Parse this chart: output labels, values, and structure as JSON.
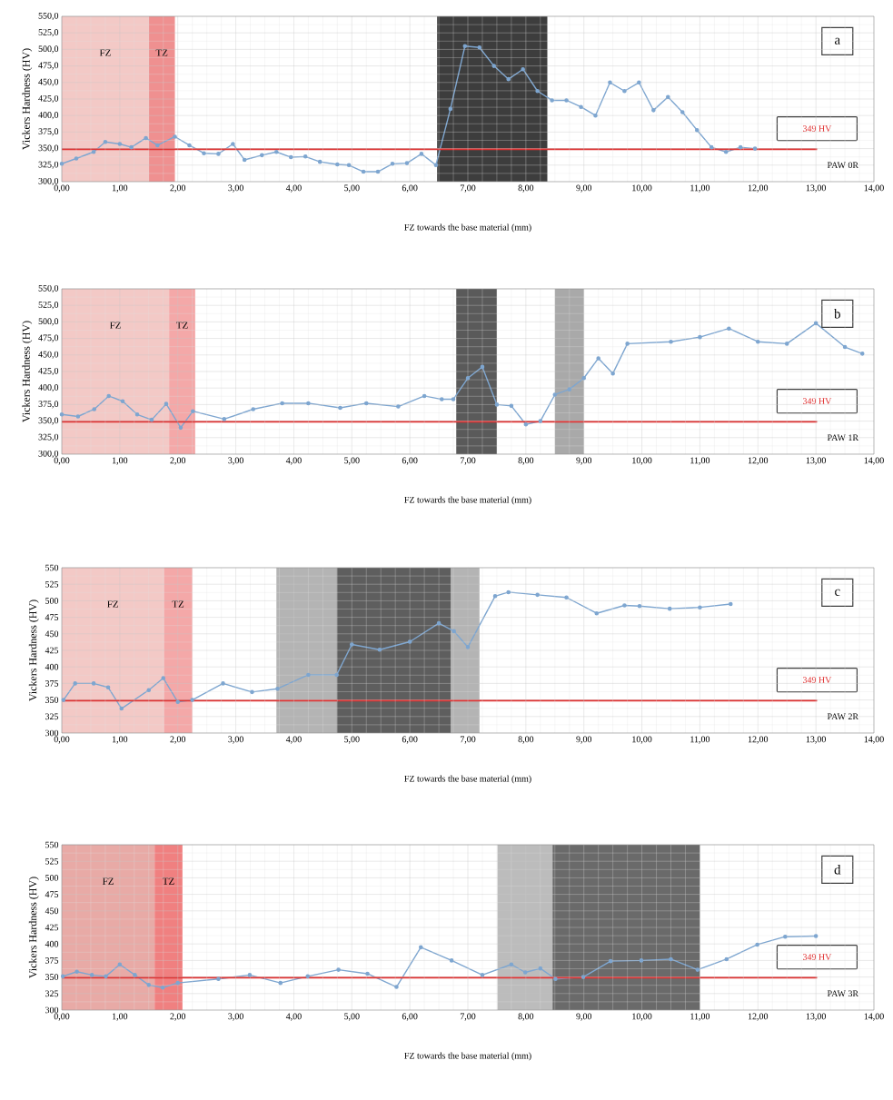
{
  "chart_data": [
    {
      "type": "line",
      "xlabel": "FZ towards the base material (mm)",
      "ylabel": "Vickers Hardness (HV)",
      "annotations": [
        "a",
        "PAW 0R"
      ],
      "xlim": [
        0,
        14
      ],
      "ylim": [
        300,
        550
      ],
      "xticks": [
        {
          "value": 0,
          "label": "0,00"
        },
        {
          "value": 1,
          "label": "1,00"
        },
        {
          "value": 2,
          "label": "2,00"
        },
        {
          "value": 3,
          "label": "3,00"
        },
        {
          "value": 4,
          "label": "4,00"
        },
        {
          "value": 5,
          "label": "5,00"
        },
        {
          "value": 6,
          "label": "6,00"
        },
        {
          "value": 7,
          "label": "7,00"
        },
        {
          "value": 8,
          "label": "8,00"
        },
        {
          "value": 9,
          "label": "9,00"
        },
        {
          "value": 10,
          "label": "10,00"
        },
        {
          "value": 11,
          "label": "11,00"
        },
        {
          "value": 12,
          "label": "12,00"
        },
        {
          "value": 13,
          "label": "13,00"
        },
        {
          "value": 14,
          "label": "14,00"
        }
      ],
      "yticks": [
        {
          "value": 300,
          "label": "300,0"
        },
        {
          "value": 325,
          "label": "325,0"
        },
        {
          "value": 350,
          "label": "350,0"
        },
        {
          "value": 375,
          "label": "375,0"
        },
        {
          "value": 400,
          "label": "400,0"
        },
        {
          "value": 425,
          "label": "425,0"
        },
        {
          "value": 450,
          "label": "450,0"
        },
        {
          "value": 475,
          "label": "475,0"
        },
        {
          "value": 500,
          "label": "500,0"
        },
        {
          "value": 525,
          "label": "525,0"
        },
        {
          "value": 550,
          "label": "550,0"
        }
      ],
      "grid": true,
      "marker": "circle",
      "line_style": "solid",
      "bands": [
        {
          "axis": "x",
          "from": 0,
          "to": 1.5,
          "label": "FZ",
          "color": "#f3c9c6"
        },
        {
          "axis": "x",
          "from": 1.5,
          "to": 1.95,
          "label": "TZ",
          "color": "#ef9090"
        },
        {
          "axis": "x",
          "from": 6.47,
          "to": 8.37,
          "color": "#3d3d3d"
        }
      ],
      "ref_lines": [
        {
          "axis": "y",
          "value": 349,
          "label": "349 HV",
          "color": "#e03030"
        }
      ],
      "series": [
        {
          "color": "#7ea6d0",
          "x": [
            0,
            0.25,
            0.55,
            0.75,
            1.0,
            1.2,
            1.45,
            1.65,
            1.95,
            2.2,
            2.45,
            2.7,
            2.95,
            3.15,
            3.45,
            3.7,
            3.95,
            4.2,
            4.45,
            4.75,
            4.95,
            5.2,
            5.45,
            5.7,
            5.95,
            6.2,
            6.45,
            6.7,
            6.95,
            7.2,
            7.45,
            7.7,
            7.95,
            8.2,
            8.45,
            8.7,
            8.95,
            9.2,
            9.45,
            9.7,
            9.95,
            10.2,
            10.45,
            10.7,
            10.95,
            11.2,
            11.45,
            11.7,
            11.95
          ],
          "values": [
            327,
            335,
            345,
            360,
            357,
            352,
            366,
            355,
            368,
            355,
            343,
            342,
            357,
            333,
            340,
            345,
            337,
            338,
            330,
            326,
            325,
            315,
            315,
            327,
            328,
            342,
            325,
            410,
            505,
            503,
            475,
            455,
            470,
            437,
            423,
            423,
            413,
            400,
            450,
            437,
            450,
            408,
            428,
            405,
            378,
            352,
            345,
            352,
            350
          ]
        }
      ]
    },
    {
      "type": "line",
      "xlabel": "FZ towards the base material (mm)",
      "ylabel": "Vickers Hardness (HV)",
      "annotations": [
        "b",
        "PAW 1R"
      ],
      "xlim": [
        0,
        14
      ],
      "ylim": [
        300,
        550
      ],
      "xticks": [
        {
          "value": 0,
          "label": "0,00"
        },
        {
          "value": 1,
          "label": "1,00"
        },
        {
          "value": 2,
          "label": "2,00"
        },
        {
          "value": 3,
          "label": "3,00"
        },
        {
          "value": 4,
          "label": "4,00"
        },
        {
          "value": 5,
          "label": "5,00"
        },
        {
          "value": 6,
          "label": "6,00"
        },
        {
          "value": 7,
          "label": "7,00"
        },
        {
          "value": 8,
          "label": "8,00"
        },
        {
          "value": 9,
          "label": "9,00"
        },
        {
          "value": 10,
          "label": "10,00"
        },
        {
          "value": 11,
          "label": "11,00"
        },
        {
          "value": 12,
          "label": "12,00"
        },
        {
          "value": 13,
          "label": "13,00"
        },
        {
          "value": 14,
          "label": "14,00"
        }
      ],
      "yticks": [
        {
          "value": 300,
          "label": "300,0"
        },
        {
          "value": 325,
          "label": "325,0"
        },
        {
          "value": 350,
          "label": "350,0"
        },
        {
          "value": 375,
          "label": "375,0"
        },
        {
          "value": 400,
          "label": "400,0"
        },
        {
          "value": 425,
          "label": "425,0"
        },
        {
          "value": 450,
          "label": "450,0"
        },
        {
          "value": 475,
          "label": "475,0"
        },
        {
          "value": 500,
          "label": "500,0"
        },
        {
          "value": 525,
          "label": "525,0"
        },
        {
          "value": 550,
          "label": "550,0"
        }
      ],
      "grid": true,
      "marker": "circle",
      "line_style": "solid",
      "bands": [
        {
          "axis": "x",
          "from": 0,
          "to": 1.85,
          "label": "FZ",
          "color": "#f3c9c6"
        },
        {
          "axis": "x",
          "from": 1.85,
          "to": 2.3,
          "label": "TZ",
          "color": "#f4a8a8"
        },
        {
          "axis": "x",
          "from": 6.8,
          "to": 7.5,
          "color": "#5a5a5a"
        },
        {
          "axis": "x",
          "from": 8.5,
          "to": 9.0,
          "color": "#a9a9a9"
        }
      ],
      "ref_lines": [
        {
          "axis": "y",
          "value": 349,
          "label": "349 HV",
          "color": "#e03030"
        }
      ],
      "series": [
        {
          "color": "#7ea6d0",
          "x": [
            0,
            0.28,
            0.56,
            0.81,
            1.05,
            1.3,
            1.55,
            1.8,
            2.05,
            2.26,
            2.8,
            3.3,
            3.8,
            4.25,
            4.8,
            5.25,
            5.8,
            6.25,
            6.55,
            6.75,
            7.0,
            7.25,
            7.5,
            7.75,
            8.0,
            8.25,
            8.5,
            8.75,
            9.0,
            9.25,
            9.5,
            9.75,
            10.5,
            11.0,
            11.5,
            12.0,
            12.5,
            13.0,
            13.5,
            13.8
          ],
          "values": [
            360,
            357,
            368,
            388,
            380,
            360,
            352,
            376,
            340,
            365,
            353,
            368,
            377,
            377,
            370,
            377,
            372,
            388,
            383,
            383,
            415,
            432,
            375,
            373,
            345,
            350,
            390,
            398,
            415,
            445,
            422,
            467,
            470,
            477,
            490,
            470,
            467,
            498,
            462,
            452
          ]
        }
      ]
    },
    {
      "type": "line",
      "xlabel": "FZ towards the base material (mm)",
      "ylabel": "Vickers Hardness (HV)",
      "annotations": [
        "c",
        "PAW 2R"
      ],
      "xlim": [
        0,
        14
      ],
      "ylim": [
        300,
        550
      ],
      "xticks": [
        {
          "value": 0,
          "label": "0,00"
        },
        {
          "value": 1,
          "label": "1,00"
        },
        {
          "value": 2,
          "label": "2,00"
        },
        {
          "value": 3,
          "label": "3,00"
        },
        {
          "value": 4,
          "label": "4,00"
        },
        {
          "value": 5,
          "label": "5,00"
        },
        {
          "value": 6,
          "label": "6,00"
        },
        {
          "value": 7,
          "label": "7,00"
        },
        {
          "value": 8,
          "label": "8,00"
        },
        {
          "value": 9,
          "label": "9,00"
        },
        {
          "value": 10,
          "label": "10,00"
        },
        {
          "value": 11,
          "label": "11,00"
        },
        {
          "value": 12,
          "label": "12,00"
        },
        {
          "value": 13,
          "label": "13,00"
        },
        {
          "value": 14,
          "label": "14,00"
        }
      ],
      "yticks": [
        300,
        325,
        350,
        375,
        400,
        425,
        450,
        475,
        500,
        525,
        550
      ],
      "grid": true,
      "marker": "circle",
      "line_style": "solid",
      "bands": [
        {
          "axis": "x",
          "from": 0,
          "to": 1.76,
          "label": "FZ",
          "color": "#f3c9c6"
        },
        {
          "axis": "x",
          "from": 1.76,
          "to": 2.25,
          "label": "TZ",
          "color": "#f4a8a8"
        },
        {
          "axis": "x",
          "from": 3.7,
          "to": 4.74,
          "color": "#b4b4b4"
        },
        {
          "axis": "x",
          "from": 4.74,
          "to": 6.71,
          "color": "#5e5e5e"
        },
        {
          "axis": "x",
          "from": 6.71,
          "to": 7.2,
          "color": "#b4b4b4"
        }
      ],
      "ref_lines": [
        {
          "axis": "y",
          "value": 349,
          "label": "349 HV",
          "color": "#e03030"
        }
      ],
      "series": [
        {
          "color": "#7ea6d0",
          "x": [
            0.03,
            0.23,
            0.55,
            0.8,
            1.03,
            1.5,
            1.75,
            2.0,
            2.25,
            2.78,
            3.28,
            3.72,
            4.25,
            4.74,
            5.0,
            5.48,
            6.0,
            6.5,
            6.76,
            7.0,
            7.47,
            7.7,
            8.2,
            8.7,
            9.22,
            9.7,
            9.96,
            10.48,
            11.0,
            11.53
          ],
          "values": [
            350,
            375,
            375,
            369,
            337,
            365,
            383,
            347,
            350,
            375,
            362,
            367,
            388,
            388,
            434,
            426,
            438,
            466,
            454,
            430,
            507,
            513,
            509,
            505,
            481,
            493,
            492,
            488,
            490,
            495
          ]
        }
      ]
    },
    {
      "type": "line",
      "xlabel": "FZ towards the base material (mm)",
      "ylabel": "Vickers Hardness (HV)",
      "annotations": [
        "d",
        "PAW 3R"
      ],
      "xlim": [
        0,
        14
      ],
      "ylim": [
        300,
        550
      ],
      "xticks": [
        {
          "value": 0,
          "label": "0,00"
        },
        {
          "value": 1,
          "label": "1,00"
        },
        {
          "value": 2,
          "label": "2,00"
        },
        {
          "value": 3,
          "label": "3,00"
        },
        {
          "value": 4,
          "label": "4,00"
        },
        {
          "value": 5,
          "label": "5,00"
        },
        {
          "value": 6,
          "label": "6,00"
        },
        {
          "value": 7,
          "label": "7,00"
        },
        {
          "value": 8,
          "label": "8,00"
        },
        {
          "value": 9,
          "label": "9,00"
        },
        {
          "value": 10,
          "label": "10,00"
        },
        {
          "value": 11,
          "label": "11,00"
        },
        {
          "value": 12,
          "label": "12,00"
        },
        {
          "value": 13,
          "label": "13,00"
        },
        {
          "value": 14,
          "label": "14,00"
        }
      ],
      "yticks": [
        300,
        325,
        350,
        375,
        400,
        425,
        450,
        475,
        500,
        525,
        550
      ],
      "grid": true,
      "marker": "circle",
      "line_style": "solid",
      "bands": [
        {
          "axis": "x",
          "from": 0,
          "to": 1.6,
          "label": "FZ",
          "color": "#e8aaa6"
        },
        {
          "axis": "x",
          "from": 1.6,
          "to": 2.08,
          "label": "TZ",
          "color": "#f08080"
        },
        {
          "axis": "x",
          "from": 7.51,
          "to": 8.46,
          "color": "#bcbcbc"
        },
        {
          "axis": "x",
          "from": 8.46,
          "to": 11.0,
          "color": "#6a6a6a"
        }
      ],
      "ref_lines": [
        {
          "axis": "y",
          "value": 349,
          "label": "349 HV",
          "color": "#e03030"
        }
      ],
      "series": [
        {
          "color": "#7ea6d0",
          "x": [
            0.02,
            0.26,
            0.52,
            0.76,
            1.0,
            1.26,
            1.5,
            1.74,
            2.0,
            2.7,
            3.24,
            3.77,
            4.24,
            4.77,
            5.27,
            5.77,
            6.19,
            6.72,
            7.25,
            7.75,
            7.99,
            8.25,
            8.51,
            8.99,
            9.46,
            9.99,
            10.5,
            10.96,
            11.46,
            11.99,
            12.47,
            13.0
          ],
          "values": [
            351,
            358,
            353,
            351,
            369,
            353,
            338,
            334,
            341,
            347,
            353,
            341,
            351,
            361,
            355,
            335,
            395,
            375,
            353,
            369,
            357,
            363,
            347,
            350,
            374,
            375,
            377,
            361,
            377,
            399,
            411,
            412
          ]
        }
      ]
    }
  ]
}
